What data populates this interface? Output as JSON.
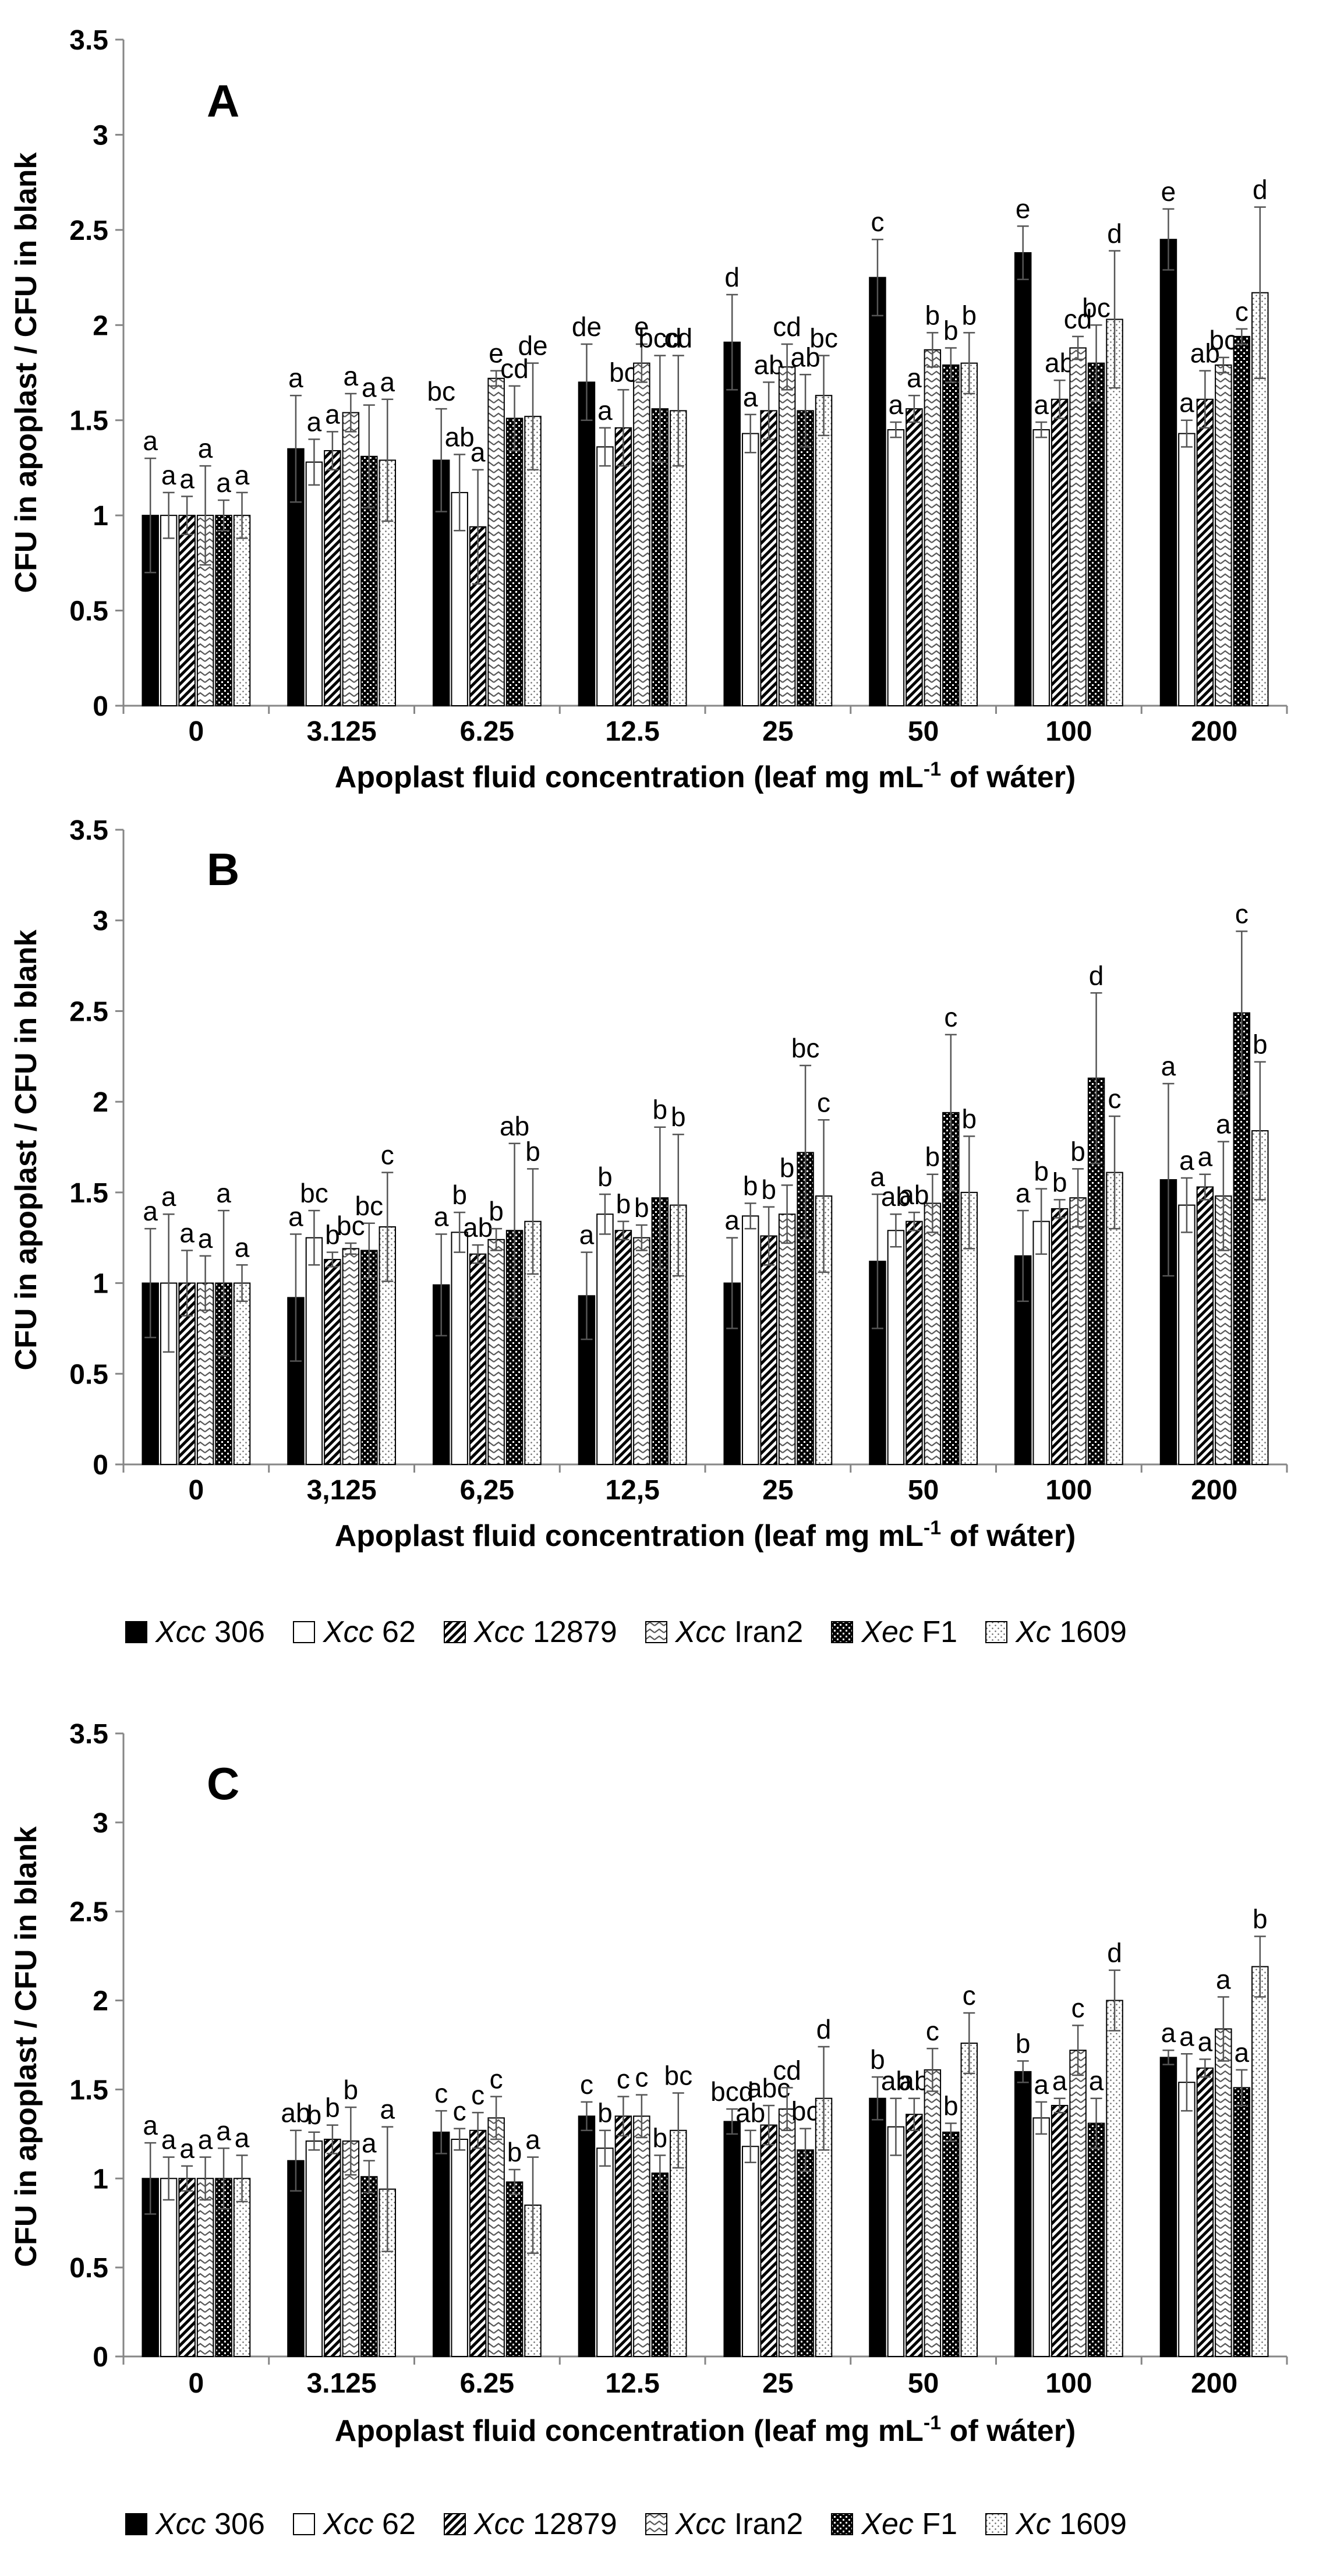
{
  "legend": [
    {
      "strain": "Xcc",
      "id": "306"
    },
    {
      "strain": "Xcc",
      "id": "62"
    },
    {
      "strain": "Xcc",
      "id": "12879"
    },
    {
      "strain": "Xcc",
      "id": "Iran2"
    },
    {
      "strain": "Xec",
      "id": "F1"
    },
    {
      "strain": "Xc",
      "id": "1609"
    }
  ],
  "chart_data": [
    {
      "type": "bar",
      "panel_label": "A",
      "ylabel": "CFU in apoplast / CFU in blank",
      "xlabel": "Apoplast fluid concentration (leaf mg mL-1 of wáter)",
      "xlabel_parts": {
        "before": "Apoplast fluid concentration (leaf mg mL",
        "sup": "-1",
        "after": " of wáter)"
      },
      "ylim": [
        0,
        3.5
      ],
      "yticks": [
        "0",
        "0.5",
        "1",
        "1.5",
        "2",
        "2.5",
        "3",
        "3.5"
      ],
      "categories": [
        "0",
        "3.125",
        "6.25",
        "12.5",
        "25",
        "50",
        "100",
        "200"
      ],
      "series": [
        {
          "name": "Xcc 306",
          "values": [
            1.0,
            1.35,
            1.29,
            1.7,
            1.91,
            2.25,
            2.38,
            2.45
          ],
          "errors": [
            0.3,
            0.28,
            0.27,
            0.2,
            0.25,
            0.2,
            0.14,
            0.16
          ],
          "letters": [
            "a",
            "a",
            "bc",
            "de",
            "d",
            "c",
            "e",
            "e"
          ]
        },
        {
          "name": "Xcc 62",
          "values": [
            1.0,
            1.28,
            1.12,
            1.36,
            1.43,
            1.45,
            1.45,
            1.43
          ],
          "errors": [
            0.12,
            0.12,
            0.2,
            0.1,
            0.1,
            0.04,
            0.04,
            0.07
          ],
          "letters": [
            "a",
            "a",
            "ab",
            "a",
            "a",
            "a",
            "a",
            "a"
          ]
        },
        {
          "name": "Xcc 12879",
          "values": [
            1.0,
            1.34,
            0.94,
            1.46,
            1.55,
            1.56,
            1.61,
            1.61
          ],
          "errors": [
            0.1,
            0.1,
            0.3,
            0.2,
            0.15,
            0.07,
            0.1,
            0.15
          ],
          "letters": [
            "a",
            "a",
            "a",
            "bc",
            "ab",
            "a",
            "ab",
            "ab"
          ]
        },
        {
          "name": "Xcc Iran2",
          "values": [
            1.0,
            1.54,
            1.72,
            1.8,
            1.78,
            1.87,
            1.88,
            1.79
          ],
          "errors": [
            0.26,
            0.1,
            0.04,
            0.1,
            0.12,
            0.09,
            0.06,
            0.04
          ],
          "letters": [
            "a",
            "a",
            "e",
            "e",
            "cd",
            "b",
            "cd",
            "bc"
          ]
        },
        {
          "name": "Xec F1",
          "values": [
            1.0,
            1.31,
            1.51,
            1.56,
            1.55,
            1.79,
            1.8,
            1.94
          ],
          "errors": [
            0.08,
            0.27,
            0.17,
            0.28,
            0.19,
            0.09,
            0.2,
            0.04
          ],
          "letters": [
            "a",
            "a",
            "cd",
            "bcd",
            "ab",
            "b",
            "bc",
            "c"
          ]
        },
        {
          "name": "Xc 1609",
          "values": [
            1.0,
            1.29,
            1.52,
            1.55,
            1.63,
            1.8,
            2.03,
            2.17
          ],
          "errors": [
            0.12,
            0.32,
            0.28,
            0.29,
            0.21,
            0.16,
            0.36,
            0.45
          ],
          "letters": [
            "a",
            "a",
            "de",
            "cd",
            "bc",
            "b",
            "d",
            "d"
          ]
        }
      ]
    },
    {
      "type": "bar",
      "panel_label": "B",
      "ylabel": "CFU in apoplast / CFU in blank",
      "xlabel": "Apoplast fluid concentration (leaf mg mL-1 of wáter)",
      "xlabel_parts": {
        "before": "Apoplast fluid concentration (leaf mg mL",
        "sup": "-1",
        "after": " of wáter)"
      },
      "ylim": [
        0,
        3.5
      ],
      "yticks": [
        "0",
        "0.5",
        "1",
        "1.5",
        "2",
        "2.5",
        "3",
        "3.5"
      ],
      "categories": [
        "0",
        "3,125",
        "6,25",
        "12,5",
        "25",
        "50",
        "100",
        "200"
      ],
      "series": [
        {
          "name": "Xcc 306",
          "values": [
            1.0,
            0.92,
            0.99,
            0.93,
            1.0,
            1.12,
            1.15,
            1.57
          ],
          "errors": [
            0.3,
            0.35,
            0.28,
            0.24,
            0.25,
            0.37,
            0.25,
            0.53
          ],
          "letters": [
            "a",
            "a",
            "a",
            "a",
            "a",
            "a",
            "a",
            "a"
          ]
        },
        {
          "name": "Xcc 62",
          "values": [
            1.0,
            1.25,
            1.28,
            1.38,
            1.37,
            1.29,
            1.34,
            1.43
          ],
          "errors": [
            0.38,
            0.15,
            0.11,
            0.11,
            0.07,
            0.09,
            0.18,
            0.15
          ],
          "letters": [
            "a",
            "bc",
            "b",
            "b",
            "b",
            "ab",
            "b",
            "a"
          ]
        },
        {
          "name": "Xcc 12879",
          "values": [
            1.0,
            1.13,
            1.16,
            1.29,
            1.26,
            1.34,
            1.41,
            1.53
          ],
          "errors": [
            0.18,
            0.04,
            0.05,
            0.05,
            0.16,
            0.05,
            0.05,
            0.07
          ],
          "letters": [
            "a",
            "b",
            "ab",
            "b",
            "b",
            "ab",
            "b",
            "a"
          ]
        },
        {
          "name": "Xcc Iran2",
          "values": [
            1.0,
            1.19,
            1.24,
            1.25,
            1.38,
            1.44,
            1.47,
            1.48
          ],
          "errors": [
            0.15,
            0.03,
            0.06,
            0.07,
            0.16,
            0.16,
            0.16,
            0.3
          ],
          "letters": [
            "a",
            "bc",
            "b",
            "b",
            "b",
            "b",
            "b",
            "a"
          ]
        },
        {
          "name": "Xec F1",
          "values": [
            1.0,
            1.18,
            1.29,
            1.47,
            1.72,
            1.94,
            2.13,
            2.49
          ],
          "errors": [
            0.4,
            0.15,
            0.48,
            0.39,
            0.48,
            0.43,
            0.47,
            0.45
          ],
          "letters": [
            "a",
            "bc",
            "ab",
            "b",
            "bc",
            "c",
            "d",
            "c"
          ]
        },
        {
          "name": "Xc 1609",
          "values": [
            1.0,
            1.31,
            1.34,
            1.43,
            1.48,
            1.5,
            1.61,
            1.84
          ],
          "errors": [
            0.1,
            0.3,
            0.29,
            0.39,
            0.42,
            0.31,
            0.31,
            0.38
          ],
          "letters": [
            "a",
            "c",
            "b",
            "b",
            "c",
            "b",
            "c",
            "b"
          ]
        }
      ]
    },
    {
      "type": "bar",
      "panel_label": "C",
      "ylabel": "CFU in apoplast / CFU in blank",
      "xlabel": "Apoplast fluid concentration (leaf mg mL-1 of wáter)",
      "xlabel_parts": {
        "before": "Apoplast fluid concentration (leaf mg mL",
        "sup": "-1",
        "after": " of wáter)"
      },
      "ylim": [
        0,
        3.5
      ],
      "yticks": [
        "0",
        "0.5",
        "1",
        "1.5",
        "2",
        "2.5",
        "3",
        "3.5"
      ],
      "categories": [
        "0",
        "3.125",
        "6.25",
        "12.5",
        "25",
        "50",
        "100",
        "200"
      ],
      "series": [
        {
          "name": "Xcc 306",
          "values": [
            1.0,
            1.1,
            1.26,
            1.35,
            1.32,
            1.45,
            1.6,
            1.68
          ],
          "errors": [
            0.2,
            0.17,
            0.12,
            0.08,
            0.07,
            0.12,
            0.06,
            0.04
          ],
          "letters": [
            "a",
            "ab",
            "c",
            "c",
            "bcd",
            "b",
            "b",
            "a"
          ]
        },
        {
          "name": "Xcc 62",
          "values": [
            1.0,
            1.21,
            1.22,
            1.17,
            1.18,
            1.29,
            1.34,
            1.54
          ],
          "errors": [
            0.12,
            0.05,
            0.06,
            0.1,
            0.09,
            0.16,
            0.09,
            0.16
          ],
          "letters": [
            "a",
            "b",
            "c",
            "b",
            "ab",
            "ab",
            "a",
            "a"
          ]
        },
        {
          "name": "Xcc 12879",
          "values": [
            1.0,
            1.22,
            1.27,
            1.35,
            1.3,
            1.36,
            1.41,
            1.62
          ],
          "errors": [
            0.07,
            0.08,
            0.1,
            0.11,
            0.11,
            0.09,
            0.04,
            0.05
          ],
          "letters": [
            "a",
            "b",
            "c",
            "c",
            "abc",
            "ab",
            "a",
            "a"
          ]
        },
        {
          "name": "Xcc Iran2",
          "values": [
            1.0,
            1.21,
            1.34,
            1.35,
            1.39,
            1.61,
            1.72,
            1.84
          ],
          "errors": [
            0.12,
            0.19,
            0.12,
            0.12,
            0.12,
            0.12,
            0.14,
            0.18
          ],
          "letters": [
            "a",
            "b",
            "c",
            "c",
            "cd",
            "c",
            "c",
            "a"
          ]
        },
        {
          "name": "Xec F1",
          "values": [
            1.0,
            1.01,
            0.98,
            1.03,
            1.16,
            1.26,
            1.31,
            1.51
          ],
          "errors": [
            0.17,
            0.09,
            0.07,
            0.1,
            0.12,
            0.05,
            0.14,
            0.1
          ],
          "letters": [
            "a",
            "a",
            "b",
            "b",
            "bc",
            "b",
            "a",
            "a"
          ]
        },
        {
          "name": "Xc 1609",
          "values": [
            1.0,
            0.94,
            0.85,
            1.27,
            1.45,
            1.76,
            2.0,
            2.19
          ],
          "errors": [
            0.13,
            0.35,
            0.27,
            0.21,
            0.29,
            0.17,
            0.17,
            0.17
          ],
          "letters": [
            "a",
            "a",
            "a",
            "bc",
            "d",
            "c",
            "d",
            "b"
          ]
        }
      ]
    }
  ]
}
